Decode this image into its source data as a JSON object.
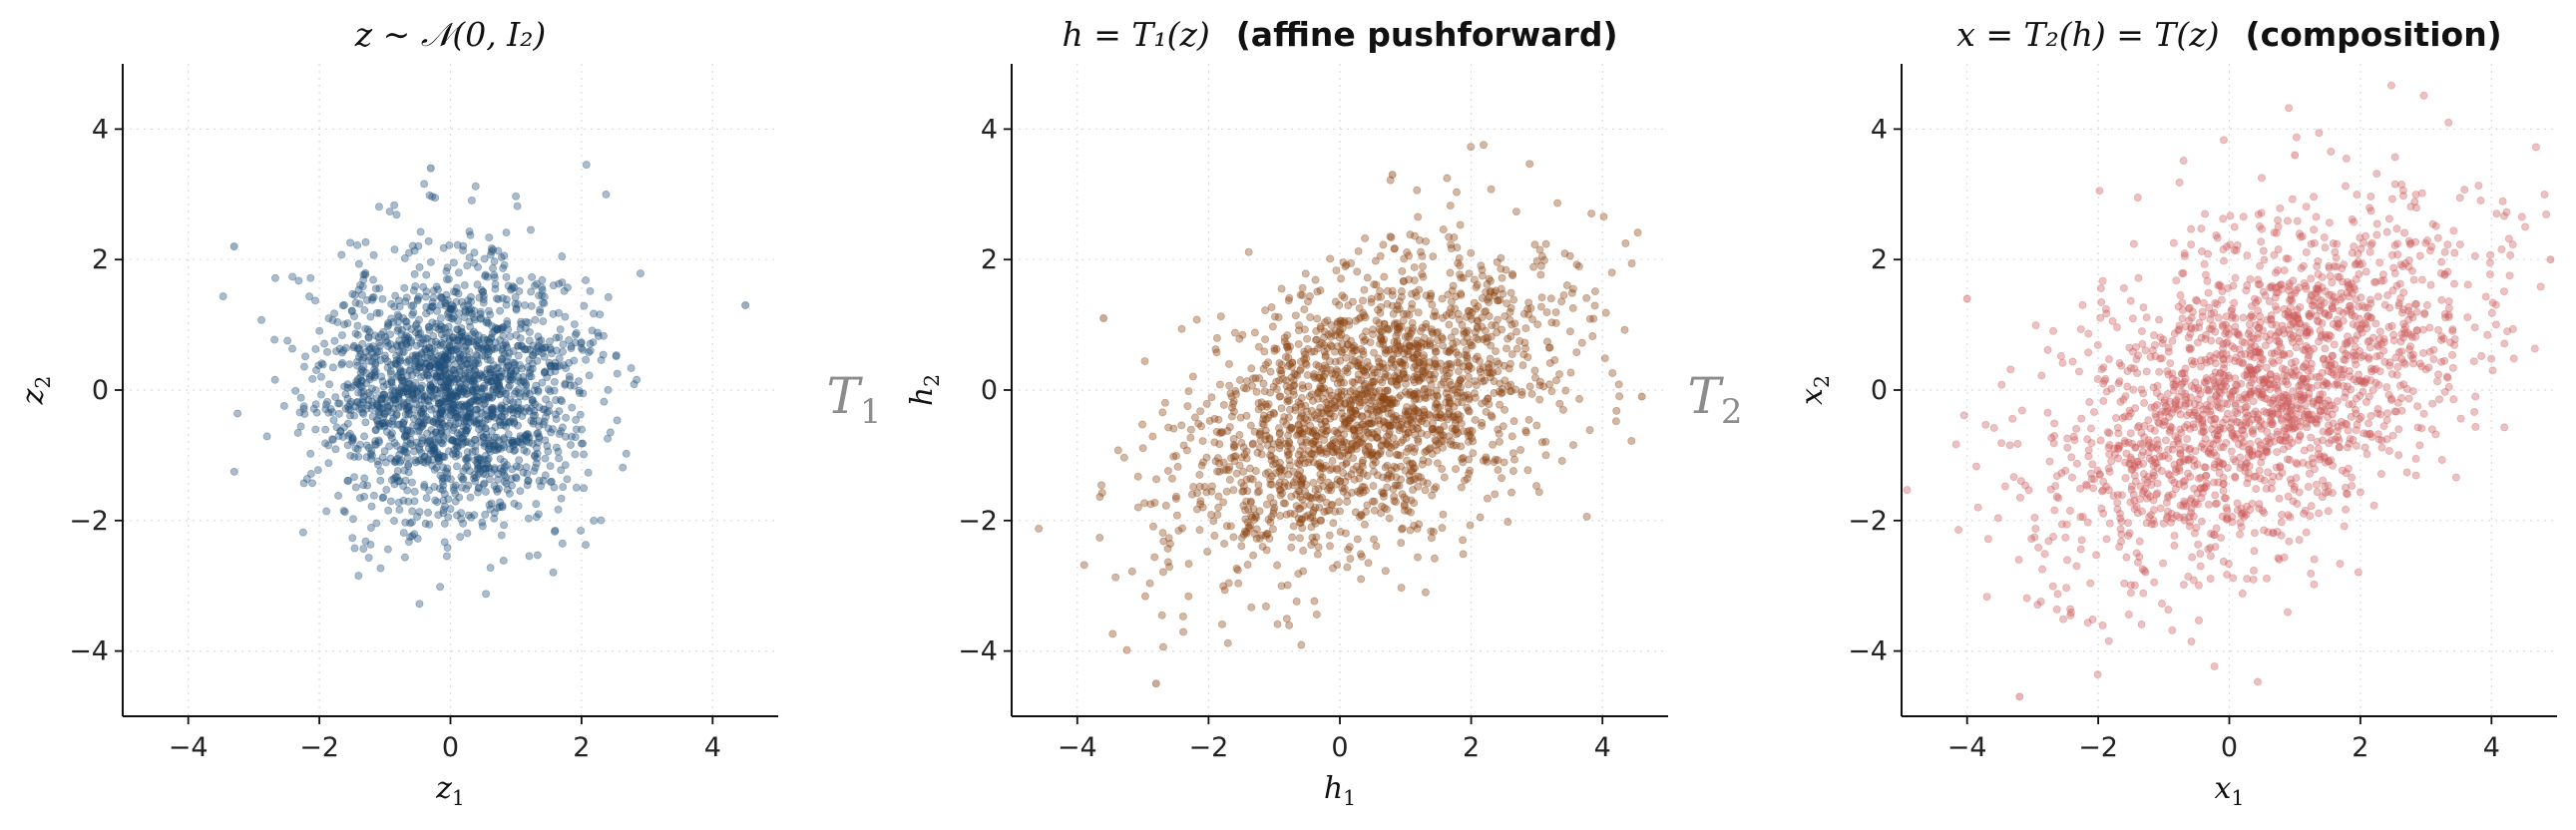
{
  "arrows": [
    {
      "label": "T",
      "sub": "1"
    },
    {
      "label": "T",
      "sub": "2"
    }
  ],
  "chart_data": [
    {
      "type": "scatter",
      "title_math": "z ∼ 𝒩(0, I₂)",
      "title_bold": "",
      "xlabel": {
        "base": "z",
        "sub": "1"
      },
      "ylabel": {
        "base": "z",
        "sub": "2"
      },
      "xlim": [
        -5,
        5
      ],
      "ylim": [
        -5,
        5
      ],
      "xticks": [
        -4,
        -2,
        0,
        2,
        4
      ],
      "yticks": [
        -4,
        -2,
        0,
        2,
        4
      ],
      "grid": true,
      "color": "#1f4e79",
      "n_points": 2000,
      "distribution": {
        "mean": [
          0,
          0
        ],
        "cov": [
          [
            1,
            0
          ],
          [
            0,
            1
          ]
        ],
        "seed": 11
      },
      "highlights": [
        [
          -3.3,
          2.2
        ],
        [
          4.5,
          1.3
        ],
        [
          -0.3,
          3.4
        ]
      ]
    },
    {
      "type": "scatter",
      "title_math": "h = T₁(z)",
      "title_bold": "(affine pushforward)",
      "xlabel": {
        "base": "h",
        "sub": "1"
      },
      "ylabel": {
        "base": "h",
        "sub": "2"
      },
      "xlim": [
        -5,
        5
      ],
      "ylim": [
        -5,
        5
      ],
      "xticks": [
        -4,
        -2,
        0,
        2,
        4
      ],
      "yticks": [
        -4,
        -2,
        0,
        2,
        4
      ],
      "grid": true,
      "color": "#8b4513",
      "n_points": 2000,
      "distribution": {
        "mean": [
          0.4,
          -0.3
        ],
        "cov": [
          [
            2.0,
            0.75
          ],
          [
            0.75,
            1.35
          ]
        ],
        "seed": 23
      },
      "highlights": [
        [
          -3.6,
          1.1
        ],
        [
          0.8,
          3.3
        ],
        [
          -2.8,
          -4.5
        ],
        [
          4.6,
          -0.1
        ]
      ]
    },
    {
      "type": "scatter",
      "title_math": "x = T₂(h) = T(z)",
      "title_bold": "(composition)",
      "xlabel": {
        "base": "x",
        "sub": "1"
      },
      "ylabel": {
        "base": "x",
        "sub": "2"
      },
      "xlim": [
        -5,
        5
      ],
      "ylim": [
        -5,
        5
      ],
      "xticks": [
        -4,
        -2,
        0,
        2,
        4
      ],
      "yticks": [
        -4,
        -2,
        0,
        2,
        4
      ],
      "grid": true,
      "color": "#cd5c5c",
      "n_points": 2000,
      "distribution": {
        "mean": [
          0.5,
          0.0
        ],
        "cov": [
          [
            2.6,
            1.15
          ],
          [
            1.15,
            2.0
          ]
        ],
        "seed": 37
      },
      "highlights": [
        [
          -4.0,
          1.4
        ],
        [
          1.0,
          3.6
        ],
        [
          -3.2,
          -4.7
        ],
        [
          4.9,
          2.0
        ]
      ]
    }
  ]
}
